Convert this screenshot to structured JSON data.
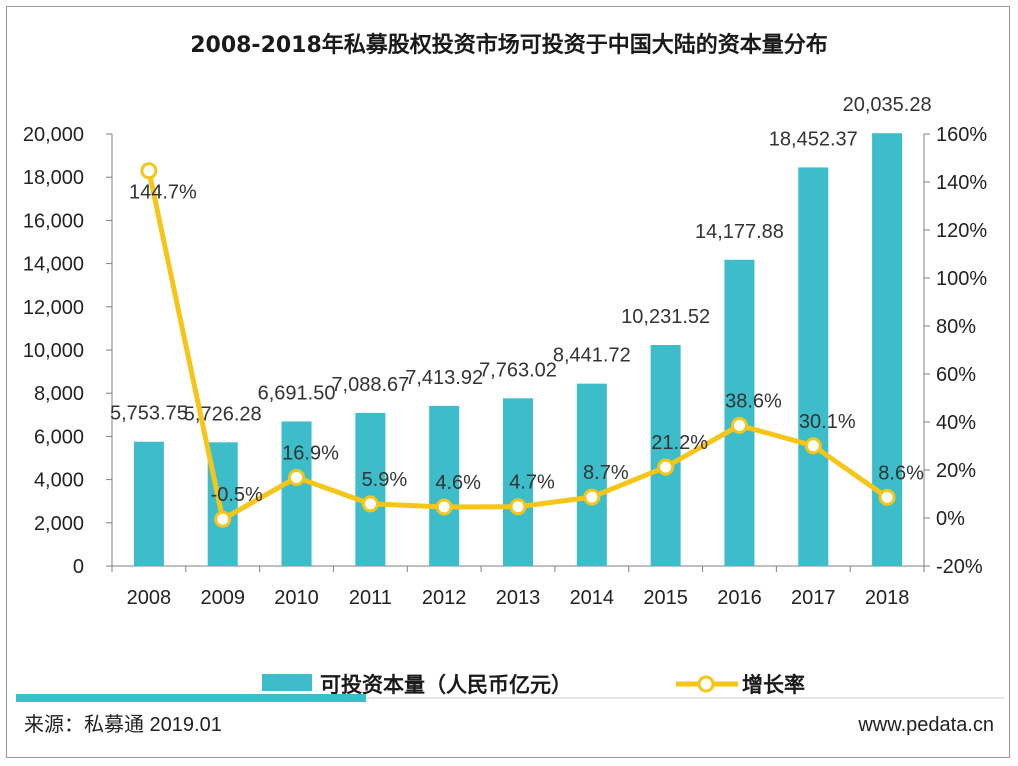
{
  "chart_data": {
    "type": "bar+line",
    "title": "2008-2018年私募股权投资市场可投资于中国大陆的资本量分布",
    "categories": [
      "2008",
      "2009",
      "2010",
      "2011",
      "2012",
      "2013",
      "2014",
      "2015",
      "2016",
      "2017",
      "2018"
    ],
    "series": [
      {
        "name": "可投资本量（人民币亿元）",
        "type": "bar",
        "axis": "left",
        "color": "#3dbcc9",
        "values": [
          5753.75,
          5726.28,
          6691.5,
          7088.67,
          7413.92,
          7763.02,
          8441.72,
          10231.52,
          14177.88,
          18452.37,
          20035.28
        ],
        "labels": [
          "5,753.75",
          "5,726.28",
          "6,691.50",
          "7,088.67",
          "7,413.92",
          "7,763.02",
          "8,441.72",
          "10,231.52",
          "14,177.88",
          "18,452.37",
          "20,035.28"
        ]
      },
      {
        "name": "增长率",
        "type": "line",
        "axis": "right",
        "color": "#f5c518",
        "values": [
          144.7,
          -0.5,
          16.9,
          5.9,
          4.6,
          4.7,
          8.7,
          21.2,
          38.6,
          30.1,
          8.6
        ],
        "labels": [
          "144.7%",
          "-0.5%",
          "16.9%",
          "5.9%",
          "4.6%",
          "4.7%",
          "8.7%",
          "21.2%",
          "38.6%",
          "30.1%",
          "8.6%"
        ]
      }
    ],
    "y_left": {
      "min": 0,
      "max": 20000,
      "step": 2000,
      "tick_labels": [
        "0",
        "2,000",
        "4,000",
        "6,000",
        "8,000",
        "10,000",
        "12,000",
        "14,000",
        "16,000",
        "18,000",
        "20,000"
      ]
    },
    "y_right": {
      "min": -20,
      "max": 160,
      "step": 20,
      "tick_labels": [
        "-20%",
        "0%",
        "20%",
        "40%",
        "60%",
        "80%",
        "100%",
        "120%",
        "140%",
        "160%"
      ]
    },
    "legend": {
      "position": "bottom"
    }
  },
  "footer": {
    "source": "来源：私募通 2019.01",
    "website": "www.pedata.cn"
  },
  "colors": {
    "bar": "#3dbcc9",
    "line": "#f5c518",
    "axis": "#7f7f7f",
    "accent_bar": "#3dbcc9"
  }
}
